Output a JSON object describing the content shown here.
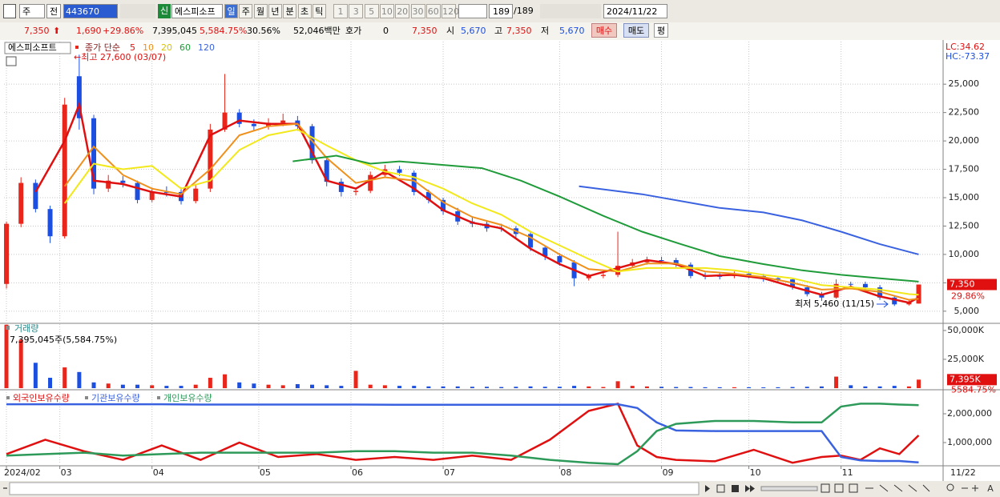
{
  "toolbar": {
    "market": "주",
    "prev": "전",
    "code": "443670",
    "new_tag": "신",
    "name": "에스피소프",
    "periods": [
      "일",
      "주",
      "월",
      "년",
      "분",
      "초",
      "틱"
    ],
    "intervals": [
      "1",
      "3",
      "5",
      "10",
      "20",
      "30",
      "60",
      "120"
    ],
    "count": "189",
    "total": "/189",
    "date": "2024/11/22"
  },
  "quote": {
    "price": "7,350",
    "change": "1,690",
    "change_pct": "+29.86%",
    "volume": "7,395,045",
    "volume_ratio": "5,584.75%",
    "turnover": "30.56%",
    "amount": "52,046백만",
    "ask_label": "호가",
    "ask": "0",
    "ask_price": "7,350",
    "open_label": "시",
    "open": "5,670",
    "high_label": "고",
    "high": "7,350",
    "low_label": "저",
    "low": "5,670",
    "buy": "매수",
    "sell": "매도",
    "avg": "평"
  },
  "chart_data": [
    {
      "type": "candlestick",
      "stock_label": "에스피소프트",
      "ma_label": "종가 단순",
      "x": [
        0,
        3,
        6,
        9,
        12,
        15,
        18,
        21,
        24,
        27,
        30,
        33,
        36,
        39,
        42,
        45,
        48,
        51,
        54,
        57,
        60,
        63,
        66,
        69,
        72,
        75,
        78,
        81,
        84,
        87,
        90,
        93,
        96,
        99,
        102,
        105,
        108,
        111,
        114,
        117,
        120,
        123,
        126,
        129,
        132,
        135,
        138,
        141,
        144,
        147,
        150,
        153,
        156,
        159,
        162,
        165,
        168,
        171,
        174,
        177,
        180,
        183,
        186,
        188
      ],
      "open": [
        7400,
        12700,
        16300,
        14000,
        11600,
        25700,
        22000,
        15800,
        16500,
        16300,
        14800,
        15500,
        15500,
        14700,
        15800,
        21000,
        22500,
        21500,
        21300,
        21600,
        21800,
        21300,
        18300,
        16400,
        15500,
        15600,
        17000,
        17500,
        17200,
        15500,
        14800,
        13800,
        12900,
        12700,
        12300,
        12300,
        11800,
        10600,
        9850,
        9300,
        7900,
        8100,
        8200,
        9000,
        9300,
        9500,
        9500,
        9100,
        8100,
        8100,
        8100,
        8300,
        8100,
        7900,
        7800,
        7100,
        6500,
        6200,
        7400,
        7400,
        7100,
        6200,
        5600,
        5670
      ],
      "high": [
        12900,
        16800,
        16600,
        14300,
        23800,
        27600,
        22300,
        17000,
        16900,
        16500,
        15900,
        16000,
        15900,
        16200,
        21500,
        25900,
        22800,
        21900,
        22000,
        22400,
        22200,
        21500,
        18600,
        16700,
        15900,
        17300,
        17900,
        17800,
        17400,
        15700,
        15000,
        14100,
        13300,
        12900,
        12700,
        12500,
        12000,
        10800,
        10100,
        9500,
        8300,
        8500,
        12000,
        9600,
        9800,
        9800,
        9700,
        9300,
        8400,
        8400,
        8500,
        8500,
        8300,
        8100,
        7900,
        7300,
        6700,
        7800,
        7600,
        7600,
        7300,
        6400,
        6000,
        7350
      ],
      "low": [
        7000,
        12400,
        13700,
        11000,
        11400,
        21000,
        15300,
        15500,
        15900,
        14500,
        14600,
        15100,
        14400,
        14500,
        15500,
        20800,
        21200,
        20900,
        21000,
        21300,
        20900,
        18000,
        16000,
        15100,
        15200,
        15400,
        16800,
        16900,
        15200,
        14500,
        13500,
        12600,
        12400,
        12000,
        12000,
        11500,
        10300,
        9500,
        9000,
        7200,
        7700,
        7900,
        8000,
        8800,
        9100,
        9200,
        8900,
        7900,
        7800,
        7800,
        7900,
        7900,
        7600,
        7500,
        6900,
        6300,
        5900,
        6100,
        7100,
        6900,
        6000,
        5460,
        5500,
        5670
      ],
      "close": [
        12700,
        16300,
        14000,
        11600,
        23200,
        22000,
        15800,
        16500,
        16300,
        14800,
        15500,
        15500,
        14700,
        15800,
        21000,
        22500,
        21500,
        21300,
        21600,
        21800,
        21300,
        18300,
        16400,
        15500,
        15600,
        17000,
        17500,
        17200,
        15500,
        14800,
        13800,
        12900,
        12700,
        12300,
        12300,
        11800,
        10600,
        9850,
        9300,
        7900,
        8100,
        8200,
        9000,
        9300,
        9500,
        9500,
        9100,
        8100,
        8100,
        8100,
        8300,
        8100,
        7900,
        7800,
        7100,
        6500,
        6200,
        7400,
        7400,
        7100,
        6200,
        5600,
        5800,
        7350
      ],
      "up_color": "#e8261c",
      "down_color": "#1c4fe0",
      "lines": [
        {
          "name": "5",
          "color": "#e01010",
          "x": [
            6,
            12,
            15,
            18,
            24,
            30,
            36,
            42,
            48,
            54,
            60,
            66,
            72,
            78,
            84,
            90,
            96,
            102,
            108,
            114,
            120,
            126,
            132,
            138,
            144,
            150,
            156,
            162,
            168,
            174,
            180,
            186,
            188
          ],
          "values": [
            15500,
            20000,
            23200,
            16500,
            16200,
            15500,
            15100,
            20500,
            21800,
            21500,
            21500,
            16500,
            15800,
            17300,
            15800,
            13900,
            12800,
            12300,
            10500,
            9150,
            8100,
            8800,
            9500,
            9150,
            8100,
            8200,
            7900,
            7150,
            6450,
            7150,
            6300,
            5750,
            6200
          ]
        },
        {
          "name": "10",
          "color": "#f0901c",
          "x": [
            12,
            18,
            24,
            30,
            36,
            42,
            48,
            54,
            60,
            66,
            72,
            78,
            84,
            90,
            96,
            102,
            108,
            114,
            120,
            126,
            132,
            138,
            144,
            150,
            156,
            162,
            168,
            174,
            180,
            186,
            188
          ],
          "values": [
            16000,
            19500,
            17000,
            15800,
            15300,
            17500,
            20500,
            21300,
            21500,
            18500,
            16300,
            16800,
            16500,
            14600,
            13300,
            12600,
            11500,
            10000,
            8700,
            8500,
            9200,
            9200,
            8500,
            8300,
            8000,
            7500,
            6900,
            7000,
            6700,
            6000,
            6100
          ]
        },
        {
          "name": "20",
          "color": "#f2e81a",
          "x": [
            12,
            18,
            24,
            30,
            36,
            42,
            48,
            54,
            60,
            66,
            72,
            78,
            84,
            90,
            96,
            102,
            108,
            114,
            120,
            126,
            132,
            138,
            144,
            150,
            156,
            162,
            168,
            174,
            180,
            186,
            188
          ],
          "values": [
            14500,
            18000,
            17500,
            17800,
            15800,
            16500,
            19200,
            20500,
            21000,
            19600,
            18300,
            17300,
            16800,
            15800,
            14500,
            13500,
            12000,
            10800,
            9600,
            8500,
            8800,
            8800,
            8800,
            8600,
            8200,
            7900,
            7300,
            7100,
            6900,
            6500,
            6450
          ]
        },
        {
          "name": "60",
          "color": "#1f9b3a",
          "x": [
            59,
            68,
            75,
            81,
            98,
            106,
            114,
            123,
            131,
            139,
            147,
            156,
            164,
            172,
            180,
            188
          ],
          "values": [
            18200,
            18700,
            18000,
            18200,
            17600,
            16500,
            15100,
            13400,
            12000,
            10900,
            9850,
            9150,
            8600,
            8200,
            7900,
            7600
          ]
        },
        {
          "name": "120",
          "color": "#3a62e0",
          "x": [
            118,
            131,
            147,
            156,
            164,
            172,
            180,
            188
          ],
          "values": [
            16000,
            15300,
            14100,
            13700,
            13000,
            12000,
            10900,
            10000
          ]
        }
      ],
      "xlim": [
        -0.5,
        192.7
      ],
      "xticks": [
        {
          "value": 0,
          "label": "2024/02"
        },
        {
          "value": 11,
          "label": "03"
        },
        {
          "value": 30,
          "label": "04"
        },
        {
          "value": 52,
          "label": "05"
        },
        {
          "value": 71,
          "label": "06"
        },
        {
          "value": 90,
          "label": "07"
        },
        {
          "value": 114,
          "label": "08"
        },
        {
          "value": 135,
          "label": "09"
        },
        {
          "value": 153,
          "label": "10"
        },
        {
          "value": 172,
          "label": "11"
        }
      ],
      "x_end_label": "11/22",
      "ylim": [
        4000,
        28750
      ],
      "yticks": [
        {
          "value": 25000,
          "label": "25,000"
        },
        {
          "value": 22500,
          "label": "22,500"
        },
        {
          "value": 20000,
          "label": "20,000"
        },
        {
          "value": 17500,
          "label": "17,500"
        },
        {
          "value": 15000,
          "label": "15,000"
        },
        {
          "value": 12500,
          "label": "12,500"
        },
        {
          "value": 10000,
          "label": "10,000"
        },
        {
          "value": 7500,
          "label": "7,500"
        },
        {
          "value": 5000,
          "label": "5,000"
        }
      ],
      "grid": true,
      "indicators": [
        "LC:34.62",
        "HC:-73.37"
      ],
      "last_price_label": "7,350",
      "last_change_label": "29.86%",
      "high_annotation": "←최고 27,600 (03/07)",
      "low_annotation": "최저 5,460 (11/15)"
    },
    {
      "type": "bar",
      "title": "거래량",
      "subtitle": "7,395,045주(5,584.75%)",
      "x": [
        0,
        3,
        6,
        9,
        12,
        15,
        18,
        21,
        24,
        27,
        30,
        33,
        36,
        39,
        42,
        45,
        48,
        51,
        54,
        57,
        60,
        63,
        66,
        69,
        72,
        75,
        78,
        81,
        84,
        87,
        90,
        93,
        96,
        99,
        102,
        105,
        108,
        111,
        114,
        117,
        120,
        123,
        126,
        129,
        132,
        135,
        138,
        141,
        144,
        147,
        150,
        153,
        156,
        159,
        162,
        165,
        168,
        171,
        174,
        177,
        180,
        183,
        186,
        188
      ],
      "values": [
        55000,
        42000,
        22000,
        9000,
        18000,
        14000,
        5000,
        4000,
        3000,
        3000,
        2500,
        2000,
        2000,
        3000,
        9000,
        12000,
        5000,
        4000,
        3000,
        2500,
        3500,
        3000,
        2500,
        2000,
        15000,
        3000,
        2500,
        2000,
        2000,
        1500,
        1500,
        1500,
        1200,
        1200,
        1000,
        1200,
        1500,
        1200,
        1200,
        2000,
        1500,
        1000,
        6000,
        2000,
        1500,
        1200,
        1000,
        1000,
        800,
        800,
        800,
        800,
        700,
        800,
        1000,
        1200,
        1500,
        10000,
        2500,
        1500,
        1500,
        2000,
        1500,
        7395
      ],
      "ylim": [
        0,
        55500
      ],
      "yticks": [
        {
          "value": 50000,
          "label": "50,000K"
        },
        {
          "value": 25000,
          "label": "25,000K"
        }
      ],
      "last_label": "7,395K",
      "last_pct_label": "5584.75%"
    },
    {
      "type": "line",
      "x": [
        0,
        8,
        16,
        24,
        32,
        40,
        48,
        56,
        64,
        72,
        80,
        88,
        96,
        104,
        112,
        120,
        126,
        130,
        134,
        138,
        146,
        154,
        162,
        168,
        172,
        176,
        180,
        184,
        188
      ],
      "series": [
        {
          "name": "외국인보유수량",
          "color": "#e01010",
          "values": [
            600000,
            1100000,
            700000,
            400000,
            900000,
            400000,
            1000000,
            500000,
            600000,
            400000,
            500000,
            400000,
            550000,
            400000,
            1100000,
            2100000,
            2350000,
            900000,
            500000,
            400000,
            350000,
            750000,
            300000,
            500000,
            550000,
            400000,
            800000,
            600000,
            1250000
          ]
        },
        {
          "name": "기관보유수량",
          "color": "#3a62e0",
          "values": [
            2330000,
            2330000,
            2330000,
            2330000,
            2330000,
            2320000,
            2320000,
            2320000,
            2320000,
            2320000,
            2310000,
            2310000,
            2310000,
            2310000,
            2310000,
            2310000,
            2330000,
            2200000,
            1700000,
            1420000,
            1400000,
            1400000,
            1400000,
            1400000,
            500000,
            380000,
            360000,
            360000,
            310000
          ]
        },
        {
          "name": "개인보유수량",
          "color": "#2e9a5a",
          "values": [
            550000,
            600000,
            650000,
            550000,
            600000,
            650000,
            650000,
            650000,
            650000,
            700000,
            700000,
            650000,
            650000,
            550000,
            400000,
            300000,
            250000,
            700000,
            1400000,
            1650000,
            1750000,
            1750000,
            1700000,
            1700000,
            2250000,
            2350000,
            2350000,
            2320000,
            2300000
          ]
        }
      ],
      "ylim": [
        250000,
        2750000
      ],
      "yticks": [
        {
          "value": 2000000,
          "label": "2,000,000"
        },
        {
          "value": 1000000,
          "label": "1,000,000"
        }
      ]
    }
  ]
}
